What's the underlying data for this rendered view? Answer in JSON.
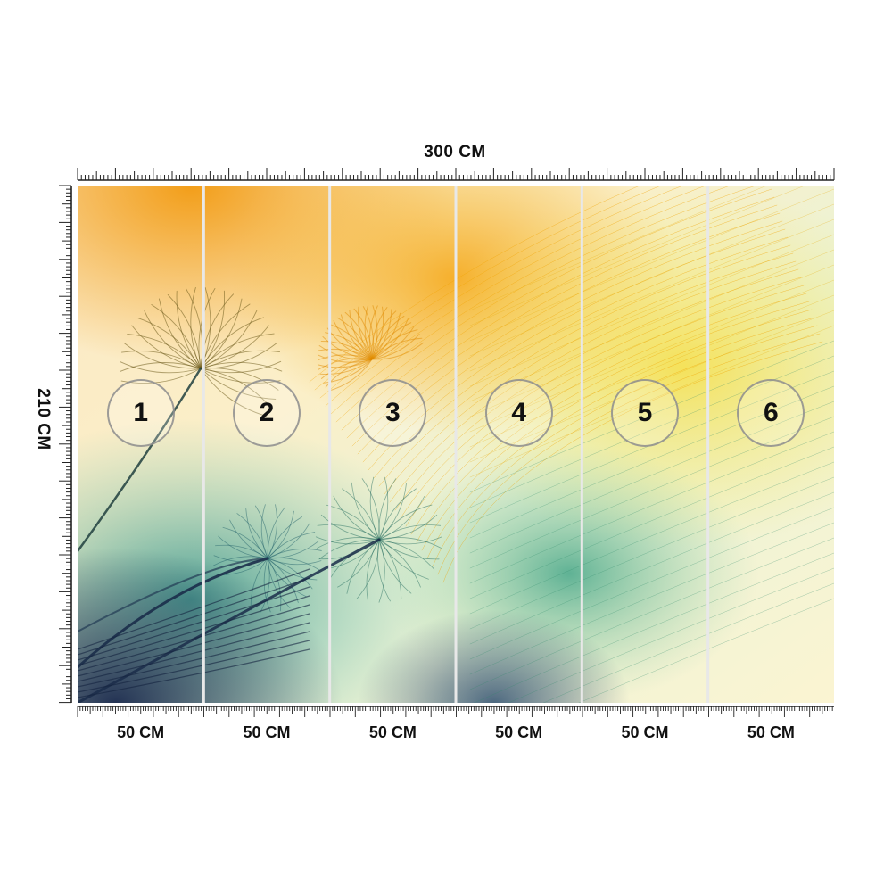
{
  "dimensions": {
    "total_width": "300 CM",
    "total_height": "210 CM"
  },
  "panels": [
    {
      "number": "1",
      "width": "50 CM"
    },
    {
      "number": "2",
      "width": "50 CM"
    },
    {
      "number": "3",
      "width": "50 CM"
    },
    {
      "number": "4",
      "width": "50 CM"
    },
    {
      "number": "5",
      "width": "50 CM"
    },
    {
      "number": "6",
      "width": "50 CM"
    }
  ],
  "artwork": {
    "subject": "dandelion-seeds",
    "colors": {
      "orange": "#f2a516",
      "yellow": "#f6e35a",
      "teal": "#3aa894",
      "navy": "#1d3557",
      "cream": "#fbf3dc",
      "divider": "#e8e8e8"
    }
  }
}
